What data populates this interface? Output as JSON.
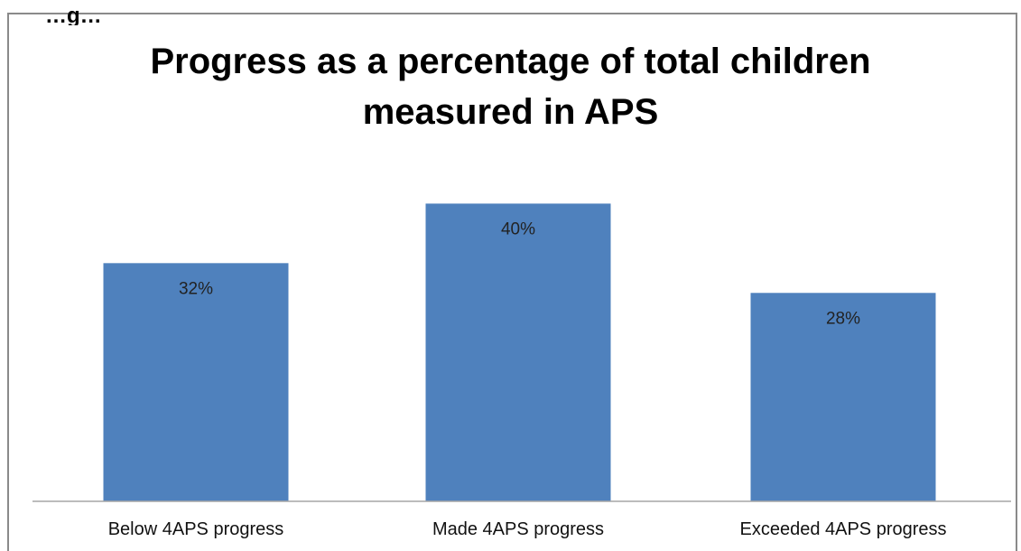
{
  "chart_data": {
    "type": "bar",
    "title_lines": [
      "Progress as a percentage of total children",
      "measured in APS"
    ],
    "categories": [
      "Below 4APS progress",
      "Made 4APS progress",
      "Exceeded 4APS progress"
    ],
    "values": [
      32,
      40,
      28
    ],
    "data_labels": [
      "32%",
      "40%",
      "28%"
    ],
    "ylim": [
      0,
      50
    ],
    "grid": false,
    "legend": "none",
    "bar_color": "#4F81BD",
    "axis_color": "#A6A6A6"
  },
  "cropped_text": "…g…"
}
